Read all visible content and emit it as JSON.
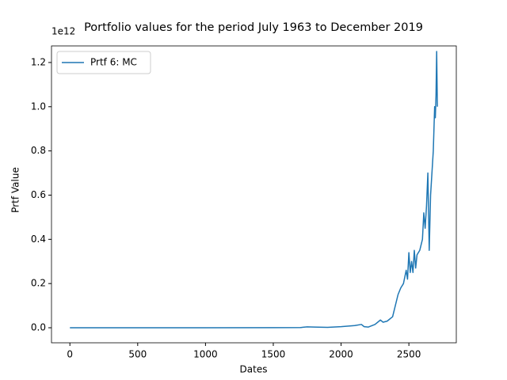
{
  "chart_data": {
    "type": "line",
    "title": "Portfolio values for the period July 1963 to December 2019",
    "xlabel": "Dates",
    "ylabel": "Prtf Value",
    "y_offset_label": "1e12",
    "x": [
      0,
      500,
      1000,
      1500,
      1700,
      1750,
      1800,
      1900,
      2000,
      2100,
      2150,
      2170,
      2200,
      2250,
      2290,
      2310,
      2340,
      2380,
      2400,
      2420,
      2440,
      2460,
      2480,
      2490,
      2500,
      2510,
      2520,
      2530,
      2540,
      2550,
      2560,
      2580,
      2600,
      2610,
      2620,
      2630,
      2640,
      2650,
      2660,
      2670,
      2680,
      2690,
      2695,
      2700,
      2705,
      2710
    ],
    "series": [
      {
        "name": "Prtf 6: MC",
        "color": "#1f77b4",
        "values": [
          0,
          0,
          0,
          0.0005,
          0.001,
          0.004,
          0.003,
          0.002,
          0.005,
          0.01,
          0.015,
          0.005,
          0.003,
          0.015,
          0.035,
          0.025,
          0.03,
          0.05,
          0.1,
          0.15,
          0.18,
          0.2,
          0.26,
          0.22,
          0.34,
          0.25,
          0.3,
          0.25,
          0.35,
          0.27,
          0.33,
          0.35,
          0.4,
          0.52,
          0.45,
          0.55,
          0.7,
          0.35,
          0.6,
          0.7,
          0.8,
          1.0,
          0.95,
          1.05,
          1.25,
          1.0
        ]
      }
    ],
    "xlim": [
      -135.7,
      2849.7
    ],
    "ylim": [
      -0.068,
      1.275
    ],
    "xticks": [
      0,
      500,
      1000,
      1500,
      2000,
      2500
    ],
    "yticks": [
      {
        "value": 0,
        "label": "0.0"
      },
      {
        "value": 0.2,
        "label": "0.2"
      },
      {
        "value": 0.4,
        "label": "0.4"
      },
      {
        "value": 0.6,
        "label": "0.6"
      },
      {
        "value": 0.8,
        "label": "0.8"
      },
      {
        "value": 1.0,
        "label": "1.0"
      },
      {
        "value": 1.2,
        "label": "1.2"
      }
    ],
    "legend": "upper left",
    "grid": false
  }
}
